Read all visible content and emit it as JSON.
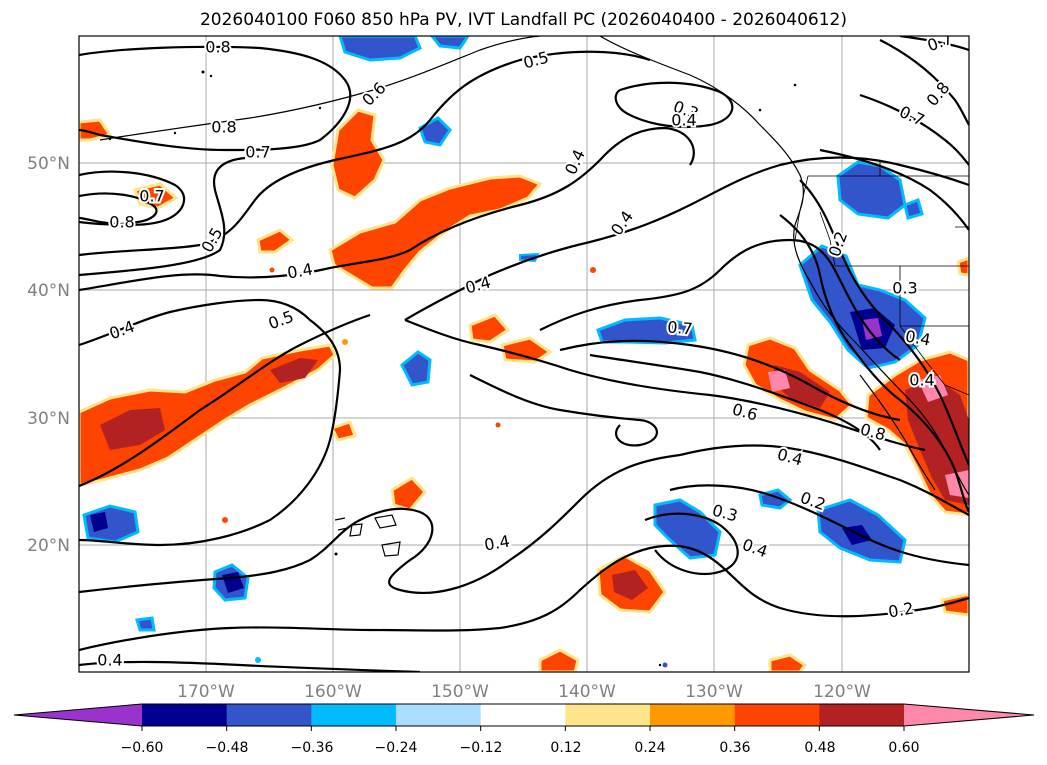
{
  "title": "2026040100 F060 850 hPa PV, IVT Landfall PC (2026040400 - 2026040612)",
  "map": {
    "lat_labels": [
      "50°N",
      "40°N",
      "30°N",
      "20°N"
    ],
    "lon_labels": [
      "170°W",
      "160°W",
      "150°W",
      "140°W",
      "130°W",
      "120°W"
    ]
  },
  "contour_labels": [
    "0.8",
    "0.8",
    "0.7",
    "0.7",
    "0.8",
    "0.5",
    "0.4",
    "0.4",
    "0.5",
    "0.4",
    "0.6",
    "0.5",
    "0.4",
    "0.4",
    "0.4",
    "0.4",
    "0.7",
    "0.6",
    "0.4",
    "0.8",
    "0.3",
    "0.4",
    "0.2",
    "0.3",
    "0.4",
    "0.4",
    "0.2",
    "0.2",
    "0.7",
    "0.8",
    "0.7",
    "0.3",
    "0.4"
  ],
  "colorbar": {
    "ticks": [
      "−0.60",
      "−0.48",
      "−0.36",
      "−0.24",
      "−0.12",
      "0.12",
      "0.24",
      "0.36",
      "0.48",
      "0.60"
    ],
    "colors": [
      "#9933cc",
      "#000090",
      "#3355cc",
      "#00bbff",
      "#aaddff",
      "#ffffff",
      "#ffe58a",
      "#ff9900",
      "#ff4400",
      "#b22222",
      "#ff88aa"
    ]
  },
  "shading_colors": {
    "neg_light": "#aaddff",
    "neg_mid": "#00bbff",
    "neg_strong": "#3355cc",
    "neg_max": "#000090",
    "neg_extreme": "#9933cc",
    "pos_light": "#ffe58a",
    "pos_mid": "#ff9900",
    "pos_strong": "#ff4400",
    "pos_max": "#b22222",
    "pos_extreme": "#ff88aa"
  }
}
